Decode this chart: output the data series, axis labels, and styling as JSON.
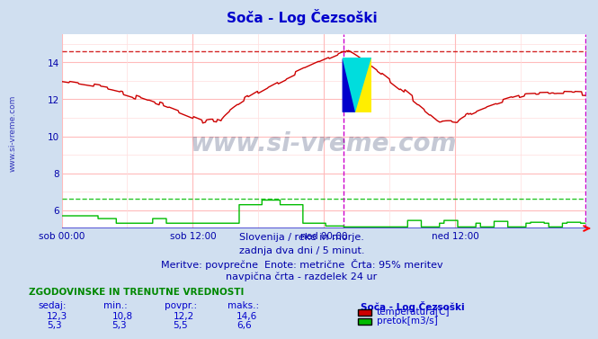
{
  "title": "Soča - Log Čezsoški",
  "title_color": "#0000cc",
  "bg_color": "#d0dff0",
  "plot_bg_color": "#ffffff",
  "xlim": [
    0,
    576
  ],
  "ylim": [
    5.0,
    15.5
  ],
  "yticks": [
    6,
    8,
    10,
    12,
    14
  ],
  "xtick_positions": [
    0,
    144,
    288,
    432,
    576
  ],
  "xticklabels": [
    "sob 00:00",
    "sob 12:00",
    "ned 00:00",
    "ned 12:00",
    ""
  ],
  "hline_temp_max": 14.6,
  "hline_flow_max": 6.6,
  "vline_pos": 310,
  "temp_color": "#cc0000",
  "flow_color": "#00bb00",
  "watermark": "www.si-vreme.com",
  "watermark_color": "#1a2a5a",
  "watermark_alpha": 0.25,
  "footer_lines": [
    "Slovenija / reke in morje.",
    "zadnja dva dni / 5 minut.",
    "Meritve: povprečne  Enote: metrične  Črta: 95% meritev",
    "navpična črta - razdelek 24 ur"
  ],
  "footer_color": "#0000aa",
  "footer_fontsize": 8,
  "legend_title": "Soča - Log Čezsoški",
  "legend_items": [
    {
      "label": "temperatura[C]",
      "color": "#cc0000"
    },
    {
      "label": "pretok[m3/s]",
      "color": "#00bb00"
    }
  ],
  "stats_header": [
    "sedaj:",
    "min.:",
    "povpr.:",
    "maks.:"
  ],
  "stats_temp": [
    "12,3",
    "10,8",
    "12,2",
    "14,6"
  ],
  "stats_flow": [
    "5,3",
    "5,3",
    "5,5",
    "6,6"
  ],
  "stats_color": "#0000cc",
  "sidebar_text": "www.si-vreme.com",
  "sidebar_color": "#0000aa"
}
